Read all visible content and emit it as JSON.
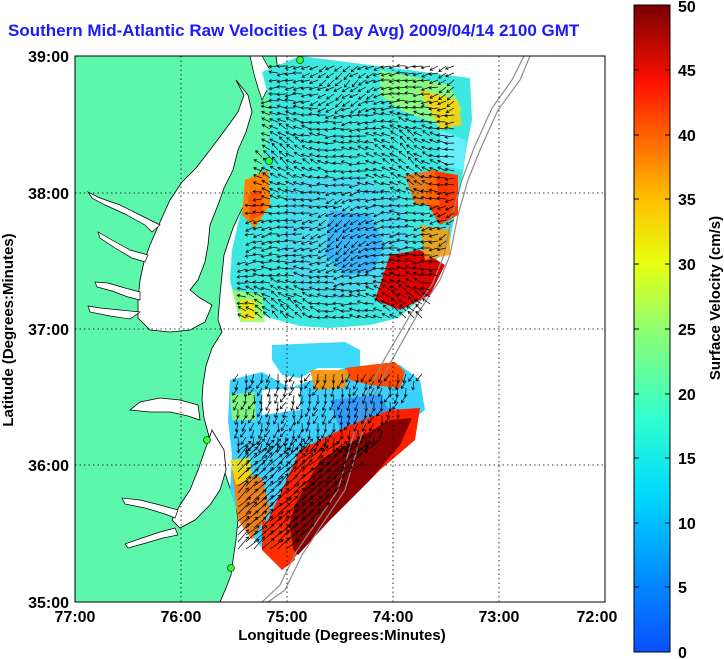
{
  "title": "Southern Mid-Atlantic Raw Velocities (1 Day Avg) 2009/04/14 2100 GMT",
  "xaxis": {
    "label": "Longitude (Degrees:Minutes)",
    "ticks": [
      "77:00",
      "76:00",
      "75:00",
      "74:00",
      "73:00",
      "72:00"
    ],
    "range": [
      -77,
      -72
    ]
  },
  "yaxis": {
    "label": "Latitude (Degrees:Minutes)",
    "ticks": [
      "35:00",
      "36:00",
      "37:00",
      "38:00",
      "39:00"
    ],
    "range": [
      35,
      39
    ]
  },
  "colorbar": {
    "label": "Surface Velocity (cm/s)",
    "ticks": [
      "0",
      "5",
      "10",
      "15",
      "20",
      "25",
      "30",
      "35",
      "40",
      "45",
      "50"
    ],
    "range": [
      0,
      50
    ]
  },
  "colors": {
    "land": "#5cf7ab",
    "title": "#1a1aff",
    "grid": "#000000"
  }
}
